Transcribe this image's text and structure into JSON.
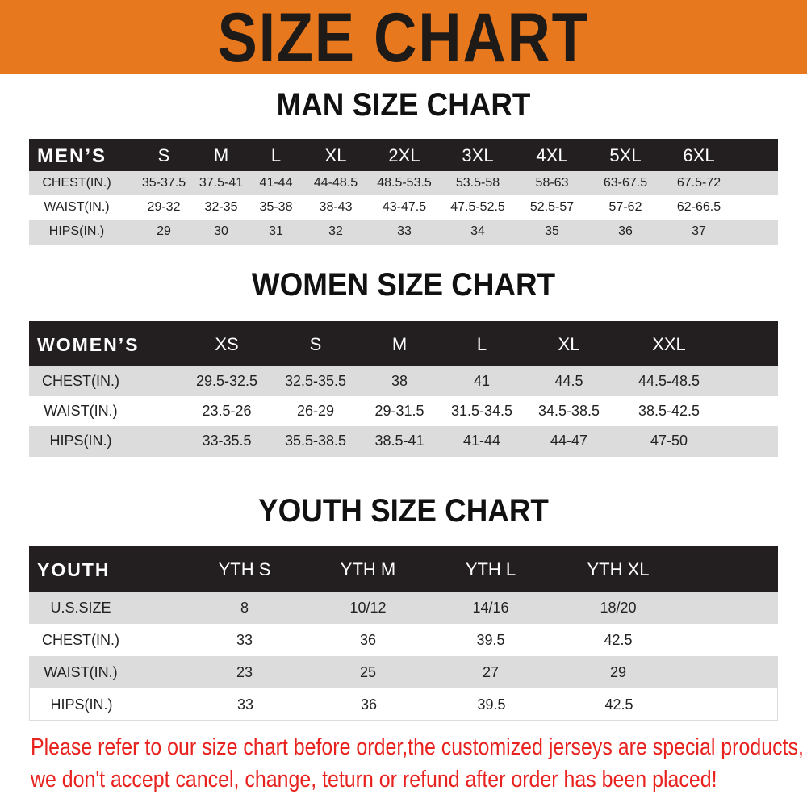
{
  "banner": {
    "title": "SIZE CHART",
    "color": "#e8781e"
  },
  "men": {
    "title": "MAN SIZE CHART",
    "headers": [
      "MEN’S",
      "S",
      "M",
      "L",
      "XL",
      "2XL",
      "3XL",
      "4XL",
      "5XL",
      "6XL"
    ],
    "rows": [
      [
        "CHEST(IN.)",
        "35-37.5",
        "37.5-41",
        "41-44",
        "44-48.5",
        "48.5-53.5",
        "53.5-58",
        "58-63",
        "63-67.5",
        "67.5-72"
      ],
      [
        "WAIST(IN.)",
        "29-32",
        "32-35",
        "35-38",
        "38-43",
        "43-47.5",
        "47.5-52.5",
        "52.5-57",
        "57-62",
        "62-66.5"
      ],
      [
        "HIPS(IN.)",
        "29",
        "30",
        "31",
        "32",
        "33",
        "34",
        "35",
        "36",
        "37"
      ]
    ]
  },
  "women": {
    "title": "WOMEN SIZE CHART",
    "headers": [
      "WOMEN’S",
      "XS",
      "S",
      "M",
      "L",
      "XL",
      "XXL"
    ],
    "rows": [
      [
        "CHEST(IN.)",
        "29.5-32.5",
        "32.5-35.5",
        "38",
        "41",
        "44.5",
        "44.5-48.5"
      ],
      [
        "WAIST(IN.)",
        "23.5-26",
        "26-29",
        "29-31.5",
        "31.5-34.5",
        "34.5-38.5",
        "38.5-42.5"
      ],
      [
        "HIPS(IN.)",
        "33-35.5",
        "35.5-38.5",
        "38.5-41",
        "41-44",
        "44-47",
        "47-50"
      ]
    ]
  },
  "youth": {
    "title": "YOUTH SIZE CHART",
    "headers": [
      "YOUTH",
      "YTH S",
      "YTH M",
      "YTH L",
      "YTH XL"
    ],
    "rows": [
      [
        "U.S.SIZE",
        "8",
        "10/12",
        "14/16",
        "18/20"
      ],
      [
        "CHEST(IN.)",
        "33",
        "36",
        "39.5",
        "42.5"
      ],
      [
        "WAIST(IN.)",
        "23",
        "25",
        "27",
        "29"
      ],
      [
        "HIPS(IN.)",
        "33",
        "36",
        "39.5",
        "42.5"
      ]
    ]
  },
  "notice": {
    "line1": "Please refer to our size chart before order,the customized jerseys are special products,",
    "line2": "we don't accept cancel, change, teturn or refund after order has been placed!",
    "color": "#e8231f"
  }
}
